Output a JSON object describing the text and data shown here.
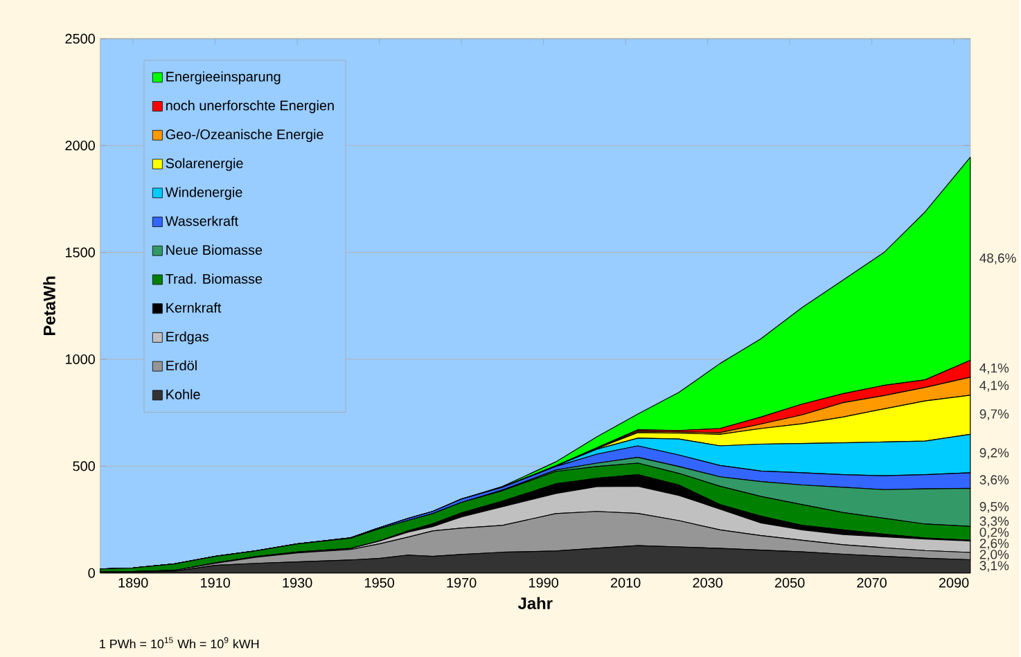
{
  "chart_data": {
    "type": "area",
    "stacked": true,
    "xlabel": "Jahr",
    "ylabel": "PetaWh",
    "xlim": [
      1882,
      2094
    ],
    "ylim": [
      0,
      2500
    ],
    "xticks": [
      1890,
      1910,
      1930,
      1950,
      1970,
      1990,
      2010,
      2030,
      2050,
      2070,
      2090
    ],
    "yticks": [
      0,
      500,
      1000,
      1500,
      2000,
      2500
    ],
    "grid": "y",
    "legend": "top left",
    "x": [
      1882,
      1890,
      1900,
      1910,
      1920,
      1930,
      1943,
      1950,
      1957,
      1963,
      1970,
      1980,
      1993,
      2003,
      2013,
      2023,
      2033,
      2043,
      2053,
      2063,
      2073,
      2083,
      2094
    ],
    "series": [
      {
        "name": "Kohle",
        "color": "#333333",
        "values": [
          5,
          6,
          8,
          36,
          45,
          52,
          61,
          68,
          84,
          78,
          87,
          97,
          103,
          116,
          128,
          122,
          115,
          107,
          99,
          88,
          78,
          69,
          62
        ]
      },
      {
        "name": "Erdöl",
        "color": "#969696",
        "values": [
          0,
          1,
          4,
          9,
          29,
          42,
          49,
          68,
          84,
          119,
          123,
          126,
          175,
          172,
          151,
          123,
          87,
          68,
          54,
          44,
          40,
          36,
          34
        ]
      },
      {
        "name": "Erdgas",
        "color": "#c0c0c0",
        "values": [
          0,
          0,
          0,
          2,
          3,
          4,
          5,
          13,
          23,
          20,
          52,
          87,
          94,
          116,
          127,
          118,
          97,
          59,
          49,
          48,
          51,
          54,
          54
        ]
      },
      {
        "name": "Kernkraft",
        "color": "#000000",
        "values": [
          0,
          0,
          0,
          0,
          0,
          0,
          0,
          1,
          6,
          13,
          19,
          26,
          45,
          39,
          54,
          49,
          21,
          32,
          21,
          22,
          13,
          5,
          3
        ]
      },
      {
        "name": "Trad. Biomasse",
        "color": "#008000",
        "values": [
          14,
          17,
          30,
          31,
          27,
          38,
          48,
          57,
          49,
          48,
          49,
          49,
          58,
          55,
          54,
          54,
          86,
          92,
          97,
          81,
          74,
          65,
          65
        ]
      },
      {
        "name": "Neue Biomasse",
        "color": "#339966",
        "values": [
          0,
          0,
          0,
          0,
          0,
          0,
          0,
          0,
          0,
          0,
          0,
          3,
          7,
          16,
          27,
          32,
          44,
          70,
          92,
          118,
          134,
          165,
          178
        ]
      },
      {
        "name": "Wasserkraft",
        "color": "#3366ff",
        "values": [
          0,
          0,
          0,
          0,
          0,
          0,
          2,
          5,
          9,
          10,
          16,
          13,
          16,
          42,
          54,
          54,
          53,
          49,
          57,
          59,
          65,
          66,
          73
        ]
      },
      {
        "name": "Windenergie",
        "color": "#00ccff",
        "values": [
          0,
          0,
          0,
          0,
          0,
          0,
          0,
          0,
          0,
          0,
          0,
          0,
          2,
          23,
          36,
          75,
          92,
          126,
          137,
          149,
          158,
          157,
          180
        ]
      },
      {
        "name": "Solarenergie",
        "color": "#ffff00",
        "values": [
          0,
          0,
          0,
          0,
          0,
          0,
          0,
          0,
          0,
          0,
          0,
          0,
          2,
          3,
          26,
          27,
          54,
          73,
          92,
          121,
          155,
          188,
          183
        ]
      },
      {
        "name": "Geo-/Ozeanische Energie",
        "color": "#ff9900",
        "values": [
          0,
          0,
          0,
          0,
          0,
          0,
          0,
          0,
          0,
          0,
          0,
          0,
          0,
          2,
          6,
          6,
          8,
          21,
          42,
          67,
          62,
          63,
          84
        ]
      },
      {
        "name": "noch unerforschte Energien",
        "color": "#ff0000",
        "values": [
          0,
          0,
          0,
          0,
          0,
          0,
          0,
          0,
          0,
          0,
          0,
          0,
          0,
          2,
          7,
          7,
          19,
          33,
          50,
          42,
          48,
          36,
          79
        ]
      },
      {
        "name": "Energieeinsparung",
        "color": "#00ff00",
        "values": [
          0,
          0,
          0,
          0,
          0,
          0,
          0,
          0,
          0,
          0,
          0,
          4,
          18,
          51,
          74,
          178,
          304,
          366,
          452,
          532,
          622,
          786,
          950
        ]
      }
    ],
    "annotations": [
      "48,6%",
      "4,1%",
      "4,1%",
      "9,7%",
      "9,2%",
      "3,6%",
      "9,5%",
      "3,3%",
      "0,2%",
      "2,6%",
      "2,0%",
      "3,1%",
      "1 PWh = 10$^{15}$ Wh = 10$^{9}$ kWH"
    ]
  }
}
